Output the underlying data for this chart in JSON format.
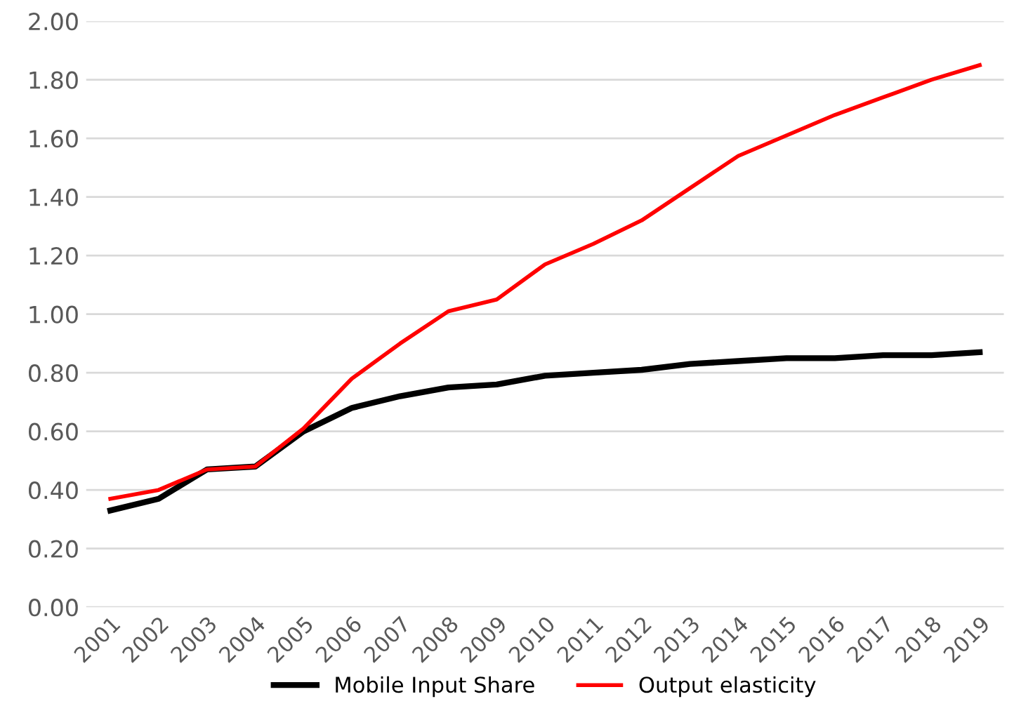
{
  "chart_data": {
    "type": "line",
    "categories": [
      "2001",
      "2002",
      "2003",
      "2004",
      "2005",
      "2006",
      "2007",
      "2008",
      "2009",
      "2010",
      "2011",
      "2012",
      "2013",
      "2014",
      "2015",
      "2016",
      "2017",
      "2018",
      "2019"
    ],
    "series": [
      {
        "name": "Mobile Input Share",
        "color": "#000000",
        "values": [
          0.33,
          0.37,
          0.47,
          0.48,
          0.6,
          0.68,
          0.72,
          0.75,
          0.76,
          0.79,
          0.8,
          0.81,
          0.83,
          0.84,
          0.85,
          0.85,
          0.86,
          0.86,
          0.87
        ]
      },
      {
        "name": "Output elasticity",
        "color": "#ff0000",
        "values": [
          0.37,
          0.4,
          0.47,
          0.48,
          0.61,
          0.78,
          0.9,
          1.01,
          1.05,
          1.17,
          1.24,
          1.32,
          1.43,
          1.54,
          1.61,
          1.68,
          1.74,
          1.8,
          1.85
        ]
      }
    ],
    "ylim": [
      0,
      2
    ],
    "yticks": [
      {
        "value": 0,
        "label": "0.00"
      },
      {
        "value": 0.2,
        "label": "0.20"
      },
      {
        "value": 0.4,
        "label": "0.40"
      },
      {
        "value": 0.6,
        "label": "0.60"
      },
      {
        "value": 0.8,
        "label": "0.80"
      },
      {
        "value": 1.0,
        "label": "1.00"
      },
      {
        "value": 1.2,
        "label": "1.20"
      },
      {
        "value": 1.4,
        "label": "1.40"
      },
      {
        "value": 1.6,
        "label": "1.60"
      },
      {
        "value": 1.8,
        "label": "1.80"
      },
      {
        "value": 2.0,
        "label": "2.00"
      }
    ],
    "grid": "y",
    "legend": "bottom",
    "marker": "none",
    "line_style": "solid"
  }
}
